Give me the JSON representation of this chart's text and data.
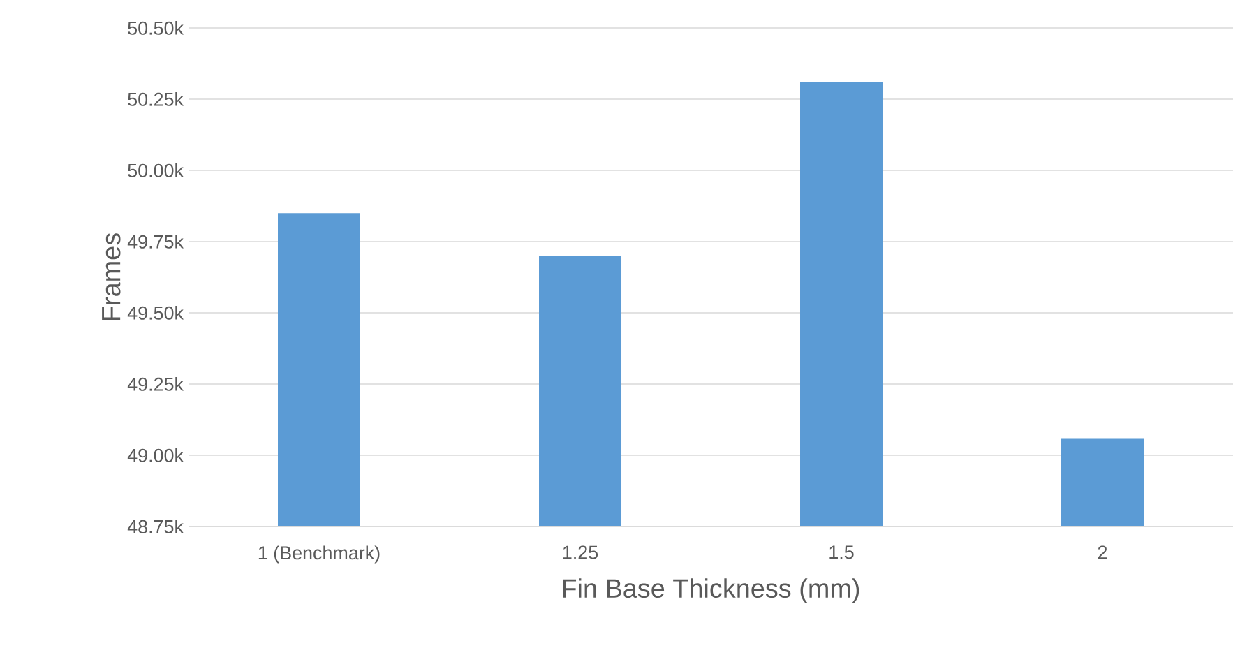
{
  "chart_data": {
    "type": "bar",
    "xlabel": "Fin Base Thickness (mm)",
    "ylabel": "Frames",
    "categories": [
      "1 (Benchmark)",
      "1.25",
      "1.5",
      "2"
    ],
    "values": [
      49850,
      49700,
      50310,
      49060
    ],
    "color": "#5b9bd5",
    "ylim": [
      48750,
      50500
    ],
    "yticks": [
      {
        "value": 48750,
        "label": "48.75k"
      },
      {
        "value": 49000,
        "label": "49.00k"
      },
      {
        "value": 49250,
        "label": "49.25k"
      },
      {
        "value": 49500,
        "label": "49.50k"
      },
      {
        "value": 49750,
        "label": "49.75k"
      },
      {
        "value": 50000,
        "label": "50.00k"
      },
      {
        "value": 50250,
        "label": "50.25k"
      },
      {
        "value": 50500,
        "label": "50.50k"
      }
    ],
    "grid": "y"
  }
}
